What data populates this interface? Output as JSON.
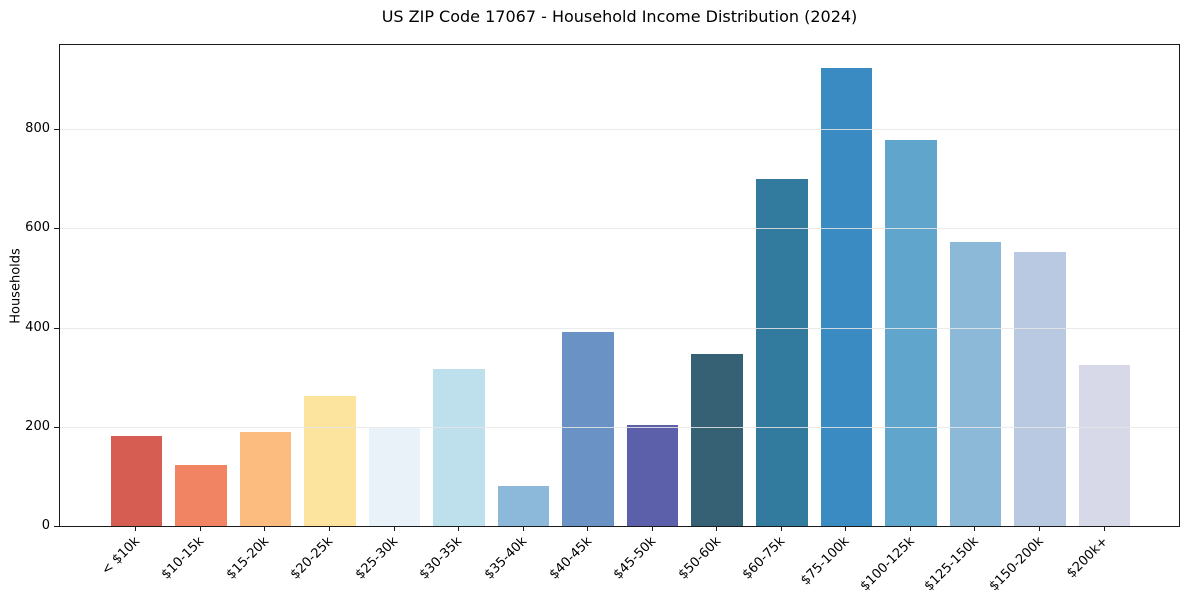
{
  "chart_data": {
    "type": "bar",
    "title": "US ZIP Code 17067 - Household Income Distribution (2024)",
    "xlabel": "",
    "ylabel": "Households",
    "categories": [
      "< $10k",
      "$10-15k",
      "$15-20k",
      "$20-25k",
      "$25-30k",
      "$30-35k",
      "$35-40k",
      "$40-45k",
      "$45-50k",
      "$50-60k",
      "$60-75k",
      "$75-100k",
      "$100-125k",
      "$125-150k",
      "$150-200k",
      "$200k+"
    ],
    "values": [
      181,
      123,
      190,
      262,
      197,
      317,
      81,
      392,
      203,
      346,
      700,
      924,
      778,
      573,
      553,
      325
    ],
    "bar_colors": [
      "#d65d52",
      "#f18563",
      "#fcbb7f",
      "#fde49e",
      "#e8f2f8",
      "#bee0ec",
      "#8cb9da",
      "#6b92c4",
      "#5c5fa9",
      "#366174",
      "#337a9f",
      "#398bc1",
      "#60a5cc",
      "#8db9d9",
      "#b9c9e1",
      "#d8d9e8"
    ],
    "ylim": [
      0,
      970
    ],
    "yticks": [
      0,
      200,
      400,
      600,
      800
    ],
    "grid": "horizontal-only, light gray, drawn over bars",
    "legend": "none",
    "spine_color": "#1a1a1a",
    "gridline_color": "#e6e6e6",
    "x_tick_label_rotation_deg": 45
  }
}
